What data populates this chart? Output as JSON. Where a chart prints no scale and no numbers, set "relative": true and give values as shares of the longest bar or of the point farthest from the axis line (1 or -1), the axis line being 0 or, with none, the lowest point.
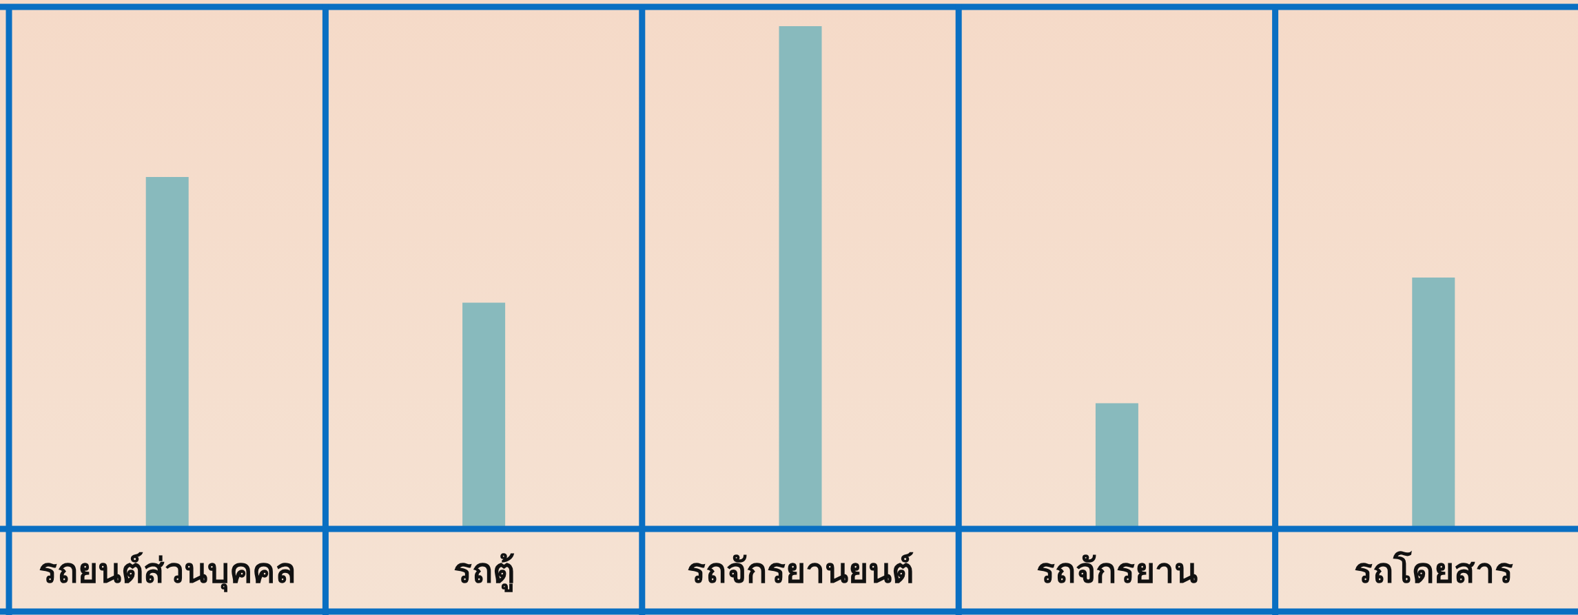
{
  "chart_data": {
    "type": "bar",
    "relative": true,
    "categories": [
      "รถยนต์ส่วนบุคคล",
      "รถตู้",
      "รถจักรยานยนต์",
      "รถจักรยาน",
      "รถโดยสาร"
    ],
    "values": [
      0.7,
      0.45,
      1,
      0.25,
      0.5
    ],
    "color": "#88babd",
    "grid": false
  }
}
